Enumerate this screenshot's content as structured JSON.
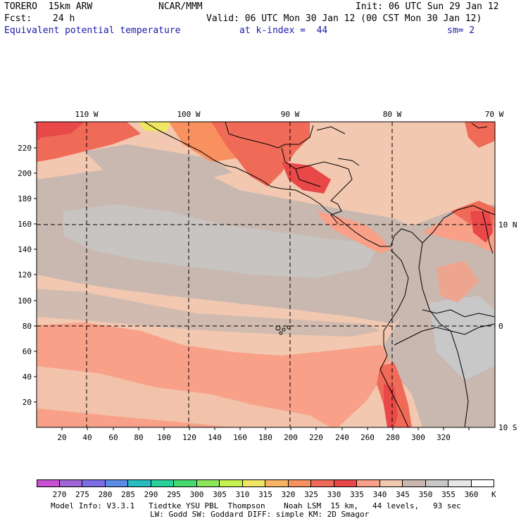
{
  "header": {
    "model": "TORERO  15km ARW",
    "center": "NCAR/MMM",
    "init": "Init: 06 UTC Sun 29 Jan 12",
    "fcst_label": "Fcst:",
    "fcst_value": "24 h",
    "valid": "Valid: 06 UTC Mon 30 Jan 12 (00 CST Mon 30 Jan 12)",
    "field": "Equivalent potential temperature",
    "level": "at k-index =  44",
    "smoothing": "sm= 2"
  },
  "map": {
    "lon_labels": [
      "110 W",
      "100 W",
      "90 W",
      "80 W",
      "70 W"
    ],
    "lat_labels": [
      "10 N",
      "0",
      "10 S"
    ],
    "x_ticks": [
      "20",
      "40",
      "60",
      "80",
      "100",
      "120",
      "140",
      "160",
      "180",
      "200",
      "220",
      "240",
      "260",
      "280",
      "300",
      "320"
    ],
    "y_ticks": [
      "20",
      "40",
      "60",
      "80",
      "100",
      "120",
      "140",
      "160",
      "180",
      "200",
      "220"
    ]
  },
  "colorbar": {
    "labels": [
      "270",
      "275",
      "280",
      "285",
      "290",
      "295",
      "300",
      "305",
      "310",
      "315",
      "320",
      "325",
      "330",
      "335",
      "340",
      "345",
      "350",
      "355",
      "360"
    ],
    "unit": "K",
    "colors": [
      "#c850d2",
      "#a064d6",
      "#7c6ee6",
      "#5a8ce6",
      "#28bcc0",
      "#28d29a",
      "#48d870",
      "#8ce65a",
      "#c6f050",
      "#f0e664",
      "#f8b464",
      "#f89060",
      "#f06a58",
      "#e84848",
      "#f8a088",
      "#f2c8b0",
      "#c8b8b0",
      "#c8c8c8",
      "#e6e6e6",
      "#ffffff"
    ]
  },
  "footer": {
    "line1": "Model Info: V3.3.1   Tiedtke YSU PBL  Thompson    Noah LSM  15 km,   44 levels,   93 sec",
    "line2": "LW: Godd SW: Goddard DIFF: simple KM: 2D Smagor"
  }
}
